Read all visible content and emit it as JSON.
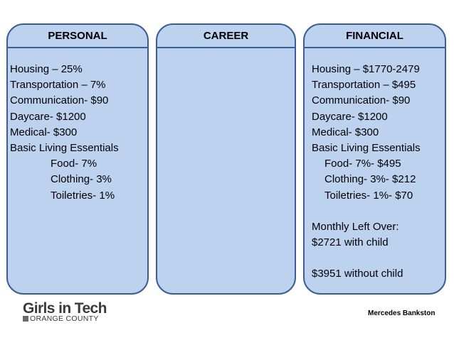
{
  "panels": {
    "personal": {
      "title": "PERSONAL",
      "lines": [
        "Housing – 25%",
        "Transportation – 7%",
        "Communication- $90",
        "Daycare- $1200",
        "Medical- $300",
        "Basic Living Essentials"
      ],
      "sub_lines": [
        "Food- 7%",
        "Clothing- 3%",
        "Toiletries- 1%"
      ]
    },
    "career": {
      "title": "CAREER"
    },
    "financial": {
      "title": "FINANCIAL",
      "lines": [
        "Housing – $1770-2479",
        "Transportation – $495",
        "Communication- $90",
        "Daycare- $1200",
        "Medical- $300",
        "Basic Living Essentials"
      ],
      "sub_lines": [
        "Food- 7%- $495",
        "Clothing- 3%- $212",
        "Toiletries- 1%- $70"
      ],
      "summary": [
        "Monthly Left Over:",
        "$2721 with child"
      ],
      "summary2": "$3951 without child"
    }
  },
  "footer": {
    "logo_top": "Girls in Tech",
    "logo_sub": "ORANGE COUNTY",
    "author": "Mercedes Bankston"
  }
}
